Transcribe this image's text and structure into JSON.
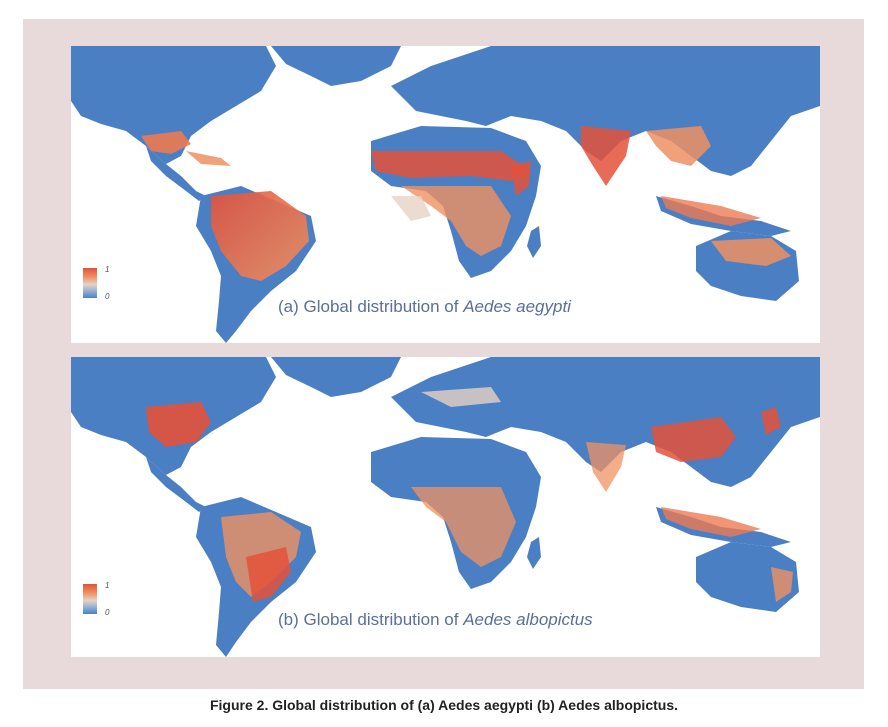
{
  "figure": {
    "caption": "Figure 2. Global distribution of (a) Aedes aegypti (b) Aedes albopictus."
  },
  "panels": [
    {
      "id": "a",
      "title_prefix": "(a) Global distribution of ",
      "species": "Aedes aegypti",
      "legend": {
        "max_label": "1",
        "min_label": "0"
      }
    },
    {
      "id": "b",
      "title_prefix": "(b) Global distribution of ",
      "species": "Aedes albopictus",
      "legend": {
        "max_label": "1",
        "min_label": "0"
      }
    }
  ],
  "colors": {
    "frame_bg": "#e8dada",
    "low": "#4a7fc4",
    "mid": "#e6d2c4",
    "high": "#e4513a",
    "title_text": "#5b6f9b"
  }
}
